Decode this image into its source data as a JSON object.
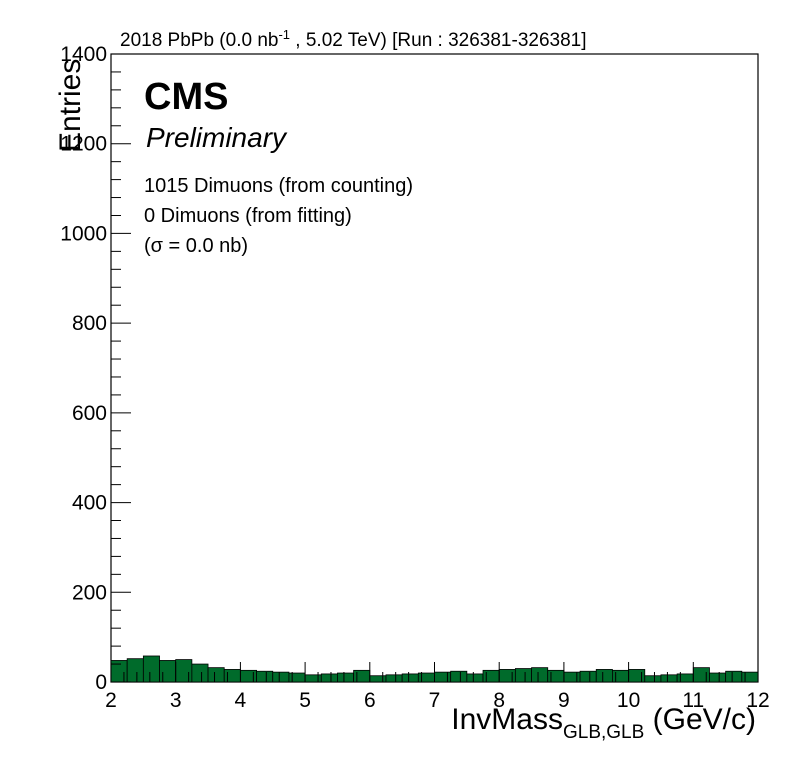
{
  "chart_data": {
    "type": "bar",
    "header": {
      "prefix": "2018 PbPb (0.0 nb",
      "sup": "-1",
      "suffix": " , 5.02 TeV) [Run : 326381-326381]"
    },
    "experiment": "CMS",
    "status": "Preliminary",
    "annotations": [
      "1015 Dimuons (from counting)",
      "0 Dimuons (from fitting)",
      "(σ = 0.0 nb)"
    ],
    "ylabel": "Entries",
    "xlabel": {
      "main": "InvMass",
      "sub": "GLB,GLB",
      "unit": " (GeV/c)"
    },
    "xlim": [
      2,
      12
    ],
    "ylim": [
      0,
      1400
    ],
    "x_ticks": [
      "2",
      "3",
      "4",
      "5",
      "6",
      "7",
      "8",
      "9",
      "10",
      "11",
      "12"
    ],
    "y_ticks": [
      "0",
      "200",
      "400",
      "600",
      "800",
      "1000",
      "1200",
      "1400"
    ],
    "bin_width": 0.25,
    "bin_start": [
      2,
      2.25,
      2.5,
      2.75,
      3,
      3.25,
      3.5,
      3.75,
      4,
      4.25,
      4.5,
      4.75,
      5,
      5.25,
      5.5,
      5.75,
      6,
      6.25,
      6.5,
      6.75,
      7,
      7.25,
      7.5,
      7.75,
      8,
      8.25,
      8.5,
      8.75,
      9,
      9.25,
      9.5,
      9.75,
      10,
      10.25,
      10.5,
      10.75,
      11,
      11.25,
      11.5,
      11.75
    ],
    "values": [
      48,
      52,
      58,
      48,
      50,
      40,
      32,
      28,
      26,
      24,
      22,
      20,
      16,
      18,
      20,
      26,
      14,
      16,
      18,
      20,
      22,
      24,
      18,
      26,
      28,
      30,
      32,
      26,
      22,
      24,
      28,
      26,
      28,
      14,
      16,
      18,
      32,
      20,
      24,
      22
    ],
    "fill_color": "#006b2b",
    "edge_color": "#000000"
  }
}
